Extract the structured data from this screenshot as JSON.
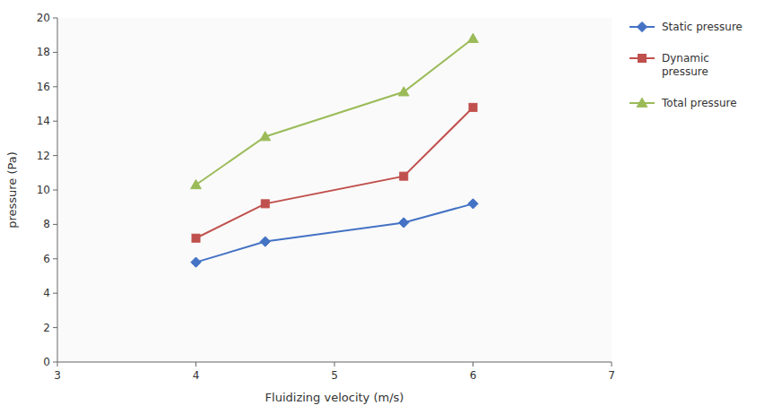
{
  "chart_data": {
    "type": "line",
    "x": [
      4,
      4.5,
      5.5,
      6
    ],
    "series": [
      {
        "name": "Static pressure",
        "color": "#4472C4",
        "marker": "diamond",
        "values": [
          5.8,
          7.0,
          8.1,
          9.2
        ]
      },
      {
        "name": "Dynamic\npressure",
        "color": "#C0504D",
        "marker": "square",
        "values": [
          7.2,
          9.2,
          10.8,
          14.8
        ]
      },
      {
        "name": "Total pressure",
        "color": "#9BBB59",
        "marker": "triangle",
        "values": [
          10.3,
          13.1,
          15.7,
          18.8
        ]
      }
    ],
    "xlim": [
      3,
      7
    ],
    "ylim": [
      0,
      20
    ],
    "xticks": [
      3,
      4,
      5,
      6,
      7
    ],
    "yticks": [
      0,
      2,
      4,
      6,
      8,
      10,
      12,
      14,
      16,
      18,
      20
    ],
    "xlabel": "Fluidizing velocity (m/s)",
    "ylabel": "pressure (Pa)",
    "grid": false,
    "legend": "right"
  }
}
